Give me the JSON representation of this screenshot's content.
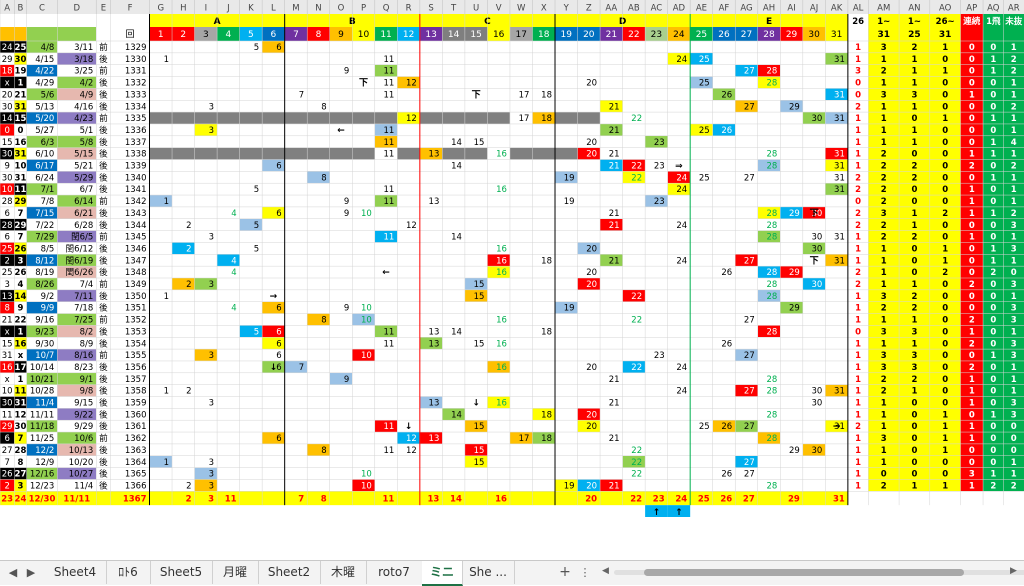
{
  "sheet": {
    "columns": [
      "A",
      "B",
      "C",
      "D",
      "E",
      "F",
      "G",
      "H",
      "I",
      "J",
      "K",
      "L",
      "M",
      "N",
      "O",
      "P",
      "Q",
      "R",
      "S",
      "T",
      "U",
      "V",
      "W",
      "X",
      "Y",
      "Z",
      "AA",
      "AB",
      "AC",
      "AD",
      "AE",
      "AF",
      "AG",
      "AH",
      "AI",
      "AJ",
      "AK",
      "AL",
      "AM",
      "AN",
      "AO",
      "AP",
      "AQ",
      "AR"
    ],
    "group_labels": {
      "A": "A",
      "B": "B",
      "C": "C",
      "D": "D",
      "E": "E"
    },
    "header_row1": {
      "f": "回",
      "nums": [
        "1",
        "2",
        "3",
        "4",
        "5",
        "6",
        "7",
        "8",
        "9",
        "10",
        "11",
        "12",
        "13",
        "14",
        "15",
        "16",
        "17",
        "18",
        "19",
        "20",
        "21",
        "22",
        "23",
        "24",
        "25",
        "26",
        "27",
        "28",
        "29",
        "30",
        "31"
      ],
      "al": "26",
      "am": "1~",
      "an": "1~",
      "ao": "26~",
      "ap": "連続",
      "aq": "1飛",
      "ar": "未抜"
    },
    "header_row2": {
      "am": "31",
      "an": "25",
      "ao": "31"
    },
    "rows": [
      {
        "a": "24",
        "b": "25",
        "c": "4/8",
        "d": "3/11",
        "e": "前",
        "f": "1329",
        "cells": {
          "5": "5",
          "6": "6"
        },
        "al": "1",
        "am": "3",
        "an": "2",
        "ao": "1",
        "ap": "0",
        "aq": "0",
        "ar": "1"
      },
      {
        "a": "29",
        "b": "30",
        "c": "4/15",
        "d": "3/18",
        "e": "後",
        "f": "1330",
        "cells": {
          "1": "1",
          "11": "11",
          "24": "24",
          "25": "25",
          "31": "31"
        },
        "al": "1",
        "am": "1",
        "an": "1",
        "ao": "0",
        "ap": "0",
        "aq": "1",
        "ar": "2"
      },
      {
        "a": "18",
        "b": "19",
        "c": "4/22",
        "d": "3/25",
        "e": "前",
        "f": "1331",
        "cells": {
          "9": "9",
          "11": "11",
          "27": "27",
          "28": "28"
        },
        "al": "3",
        "am": "2",
        "an": "1",
        "ao": "1",
        "ap": "0",
        "aq": "1",
        "ar": "2"
      },
      {
        "a": "x",
        "b": "1",
        "c": "4/29",
        "d": "4/2",
        "e": "後",
        "f": "1332",
        "cells": {
          "11": "11",
          "12": "12",
          "20": "20",
          "25": "25",
          "28": "28"
        },
        "al": "0",
        "am": "1",
        "an": "1",
        "ao": "0",
        "ap": "0",
        "aq": "0",
        "ar": "1"
      },
      {
        "a": "20",
        "b": "21",
        "c": "5/6",
        "d": "4/9",
        "e": "後",
        "f": "1333",
        "cells": {
          "7": "7",
          "11": "11",
          "17": "17",
          "18": "18",
          "26": "26",
          "31": "31"
        },
        "al": "0",
        "am": "3",
        "an": "3",
        "ao": "0",
        "ap": "1",
        "aq": "0",
        "ar": "1"
      },
      {
        "a": "30",
        "b": "31",
        "c": "5/13",
        "d": "4/16",
        "e": "後",
        "f": "1334",
        "cells": {
          "3": "3",
          "8": "8",
          "21": "21",
          "27": "27",
          "29": "29"
        },
        "al": "2",
        "am": "1",
        "an": "1",
        "ao": "0",
        "ap": "0",
        "aq": "0",
        "ar": "2"
      },
      {
        "a": "14",
        "b": "15",
        "c": "5/20",
        "d": "4/23",
        "e": "前",
        "f": "1335",
        "cells": {
          "12": "12",
          "17": "17",
          "18": "18",
          "22": "22",
          "30": "30",
          "31": "31"
        },
        "al": "1",
        "am": "1",
        "an": "0",
        "ao": "1",
        "ap": "0",
        "aq": "1",
        "ar": "1"
      },
      {
        "a": "0",
        "b": "0",
        "c": "5/27",
        "d": "5/1",
        "e": "後",
        "f": "1336",
        "cells": {
          "3": "3",
          "11": "11",
          "21": "21",
          "25": "25",
          "26": "26"
        },
        "al": "1",
        "am": "1",
        "an": "1",
        "ao": "0",
        "ap": "0",
        "aq": "0",
        "ar": "1"
      },
      {
        "a": "15",
        "b": "16",
        "c": "6/3",
        "d": "5/8",
        "e": "後",
        "f": "1337",
        "cells": {
          "11": "11",
          "14": "14",
          "15": "15",
          "20": "20",
          "23": "23"
        },
        "al": "1",
        "am": "1",
        "an": "1",
        "ao": "0",
        "ap": "0",
        "aq": "1",
        "ar": "4"
      },
      {
        "a": "30",
        "b": "31",
        "c": "6/10",
        "d": "5/15",
        "e": "後",
        "f": "1338",
        "cells": {
          "11": "11",
          "13": "13",
          "16": "16",
          "20": "20",
          "21": "21",
          "28": "28",
          "31": "31"
        },
        "al": "1",
        "am": "2",
        "an": "0",
        "ao": "0",
        "ap": "1",
        "aq": "1",
        "ar": "1"
      },
      {
        "a": "9",
        "b": "10",
        "c": "6/17",
        "d": "5/21",
        "e": "後",
        "f": "1339",
        "cells": {
          "6": "6",
          "14": "14",
          "21": "21",
          "22": "22",
          "23": "23",
          "28": "28",
          "31": "31"
        },
        "al": "1",
        "am": "2",
        "an": "2",
        "ao": "0",
        "ap": "2",
        "aq": "0",
        "ar": "2"
      },
      {
        "a": "30",
        "b": "31",
        "c": "6/24",
        "d": "5/29",
        "e": "後",
        "f": "1340",
        "cells": {
          "8": "8",
          "19": "19",
          "22": "22",
          "24": "24",
          "25": "25",
          "27": "27",
          "31": "31"
        },
        "al": "2",
        "am": "2",
        "an": "2",
        "ao": "0",
        "ap": "0",
        "aq": "1",
        "ar": "1"
      },
      {
        "a": "10",
        "b": "11",
        "c": "7/1",
        "d": "6/7",
        "e": "後",
        "f": "1341",
        "cells": {
          "5": "5",
          "11": "11",
          "16": "16",
          "24": "24",
          "31": "31"
        },
        "al": "2",
        "am": "2",
        "an": "0",
        "ao": "0",
        "ap": "1",
        "aq": "0",
        "ar": "1"
      },
      {
        "a": "28",
        "b": "29",
        "c": "7/8",
        "d": "6/14",
        "e": "前",
        "f": "1342",
        "cells": {
          "1": "1",
          "9": "9",
          "11": "11",
          "13": "13",
          "19": "19",
          "23": "23"
        },
        "al": "0",
        "am": "2",
        "an": "0",
        "ao": "0",
        "ap": "1",
        "aq": "0",
        "ar": "1"
      },
      {
        "a": "6",
        "b": "7",
        "c": "7/15",
        "d": "6/21",
        "e": "後",
        "f": "1343",
        "cells": {
          "4": "4",
          "6": "6",
          "9": "9",
          "10": "10",
          "21": "21",
          "28": "28",
          "29": "29",
          "30": "30"
        },
        "al": "2",
        "am": "3",
        "an": "1",
        "ao": "2",
        "ap": "1",
        "aq": "1",
        "ar": "2"
      },
      {
        "a": "28",
        "b": "29",
        "c": "7/22",
        "d": "6/28",
        "e": "後",
        "f": "1344",
        "cells": {
          "2": "2",
          "5": "5",
          "12": "12",
          "21": "21",
          "24": "24",
          "28": "28"
        },
        "al": "2",
        "am": "2",
        "an": "1",
        "ao": "0",
        "ap": "0",
        "aq": "0",
        "ar": "3"
      },
      {
        "a": "6",
        "b": "7",
        "c": "7/29",
        "d": "閏6/5",
        "e": "前",
        "f": "1345",
        "cells": {
          "3": "3",
          "11": "11",
          "14": "14",
          "28": "28",
          "30": "30",
          "31": "31"
        },
        "al": "1",
        "am": "2",
        "an": "2",
        "ao": "0",
        "ap": "1",
        "aq": "0",
        "ar": "1"
      },
      {
        "a": "25",
        "b": "26",
        "c": "8/5",
        "d": "閏6/12",
        "e": "後",
        "f": "1346",
        "cells": {
          "2": "2",
          "5": "5",
          "16": "16",
          "20": "20",
          "30": "30"
        },
        "al": "1",
        "am": "1",
        "an": "0",
        "ao": "1",
        "ap": "0",
        "aq": "1",
        "ar": "3"
      },
      {
        "a": "2",
        "b": "3",
        "c": "8/12",
        "d": "閏6/19",
        "e": "後",
        "f": "1347",
        "cells": {
          "4": "4",
          "16": "16",
          "18": "18",
          "21": "21",
          "24": "24",
          "27": "27",
          "31": "31"
        },
        "al": "1",
        "am": "1",
        "an": "0",
        "ao": "1",
        "ap": "0",
        "aq": "1",
        "ar": "1"
      },
      {
        "a": "25",
        "b": "26",
        "c": "8/19",
        "d": "閏6/26",
        "e": "後",
        "f": "1348",
        "cells": {
          "4": "4",
          "16": "16",
          "20": "20",
          "26": "26",
          "28": "28",
          "29": "29"
        },
        "al": "2",
        "am": "1",
        "an": "0",
        "ao": "2",
        "ap": "0",
        "aq": "2",
        "ar": "0"
      },
      {
        "a": "3",
        "b": "4",
        "c": "8/26",
        "d": "7/4",
        "e": "前",
        "f": "1349",
        "cells": {
          "2": "2",
          "3": "3",
          "15": "15",
          "20": "20",
          "28": "28",
          "30": "30"
        },
        "al": "2",
        "am": "1",
        "an": "1",
        "ao": "0",
        "ap": "2",
        "aq": "0",
        "ar": "3"
      },
      {
        "a": "13",
        "b": "14",
        "c": "9/2",
        "d": "7/11",
        "e": "後",
        "f": "1350",
        "cells": {
          "1": "1",
          "15": "15",
          "22": "22",
          "28": "28"
        },
        "al": "1",
        "am": "3",
        "an": "2",
        "ao": "0",
        "ap": "0",
        "aq": "0",
        "ar": "1"
      },
      {
        "a": "8",
        "b": "9",
        "c": "9/9",
        "d": "7/18",
        "e": "後",
        "f": "1351",
        "cells": {
          "4": "4",
          "6": "6",
          "9": "9",
          "10": "10",
          "19": "19",
          "29": "29"
        },
        "al": "1",
        "am": "2",
        "an": "2",
        "ao": "0",
        "ap": "0",
        "aq": "0",
        "ar": "3"
      },
      {
        "a": "21",
        "b": "22",
        "c": "9/16",
        "d": "7/25",
        "e": "前",
        "f": "1352",
        "cells": {
          "8": "8",
          "10": "10",
          "16": "16",
          "22": "22",
          "27": "27"
        },
        "al": "1",
        "am": "1",
        "an": "1",
        "ao": "0",
        "ap": "2",
        "aq": "0",
        "ar": "3"
      },
      {
        "a": "x",
        "b": "1",
        "c": "9/23",
        "d": "8/2",
        "e": "後",
        "f": "1353",
        "cells": {
          "5": "5",
          "6": "6",
          "11": "11",
          "13": "13",
          "14": "14",
          "18": "18",
          "28": "28"
        },
        "al": "0",
        "am": "3",
        "an": "3",
        "ao": "0",
        "ap": "1",
        "aq": "0",
        "ar": "1"
      },
      {
        "a": "15",
        "b": "16",
        "c": "9/30",
        "d": "8/9",
        "e": "後",
        "f": "1354",
        "cells": {
          "6": "6",
          "11": "11",
          "13": "13",
          "15": "15",
          "16": "16",
          "26": "26"
        },
        "al": "1",
        "am": "1",
        "an": "1",
        "ao": "0",
        "ap": "2",
        "aq": "0",
        "ar": "3"
      },
      {
        "a": "31",
        "b": "x",
        "c": "10/7",
        "d": "8/16",
        "e": "前",
        "f": "1355",
        "cells": {
          "3": "3",
          "6": "6",
          "10": "10",
          "23": "23",
          "27": "27"
        },
        "al": "1",
        "am": "3",
        "an": "3",
        "ao": "0",
        "ap": "0",
        "aq": "1",
        "ar": "3"
      },
      {
        "a": "16",
        "b": "17",
        "c": "10/14",
        "d": "8/23",
        "e": "後",
        "f": "1356",
        "cells": {
          "6": "6",
          "7": "7",
          "16": "16",
          "20": "20",
          "22": "22",
          "24": "24"
        },
        "al": "1",
        "am": "3",
        "an": "3",
        "ao": "0",
        "ap": "2",
        "aq": "0",
        "ar": "1"
      },
      {
        "a": "x",
        "b": "1",
        "c": "10/21",
        "d": "9/1",
        "e": "後",
        "f": "1357",
        "cells": {
          "9": "9",
          "21": "21",
          "28": "28"
        },
        "al": "1",
        "am": "2",
        "an": "2",
        "ao": "0",
        "ap": "1",
        "aq": "0",
        "ar": "1"
      },
      {
        "a": "10",
        "b": "11",
        "c": "10/28",
        "d": "9/8",
        "e": "後",
        "f": "1358",
        "cells": {
          "1": "1",
          "2": "2",
          "24": "24",
          "27": "27",
          "28": "28",
          "30": "30",
          "31": "31"
        },
        "al": "1",
        "am": "2",
        "an": "1",
        "ao": "0",
        "ap": "1",
        "aq": "0",
        "ar": "1"
      },
      {
        "a": "30",
        "b": "31",
        "c": "11/4",
        "d": "9/15",
        "e": "後",
        "f": "1359",
        "cells": {
          "3": "3",
          "13": "13",
          "16": "16",
          "21": "21",
          "30": "30"
        },
        "al": "1",
        "am": "1",
        "an": "0",
        "ao": "0",
        "ap": "1",
        "aq": "0",
        "ar": "3"
      },
      {
        "a": "11",
        "b": "12",
        "c": "11/11",
        "d": "9/22",
        "e": "後",
        "f": "1360",
        "cells": {
          "14": "14",
          "18": "18",
          "20": "20",
          "28": "28"
        },
        "al": "1",
        "am": "1",
        "an": "0",
        "ao": "1",
        "ap": "0",
        "aq": "1",
        "ar": "3"
      },
      {
        "a": "29",
        "b": "30",
        "c": "11/18",
        "d": "9/29",
        "e": "後",
        "f": "1361",
        "cells": {
          "11": "11",
          "15": "15",
          "20": "20",
          "25": "25",
          "26": "26",
          "27": "27",
          "31": "31"
        },
        "al": "2",
        "am": "1",
        "an": "0",
        "ao": "1",
        "ap": "1",
        "aq": "0",
        "ar": "0"
      },
      {
        "a": "6",
        "b": "7",
        "c": "11/25",
        "d": "10/6",
        "e": "前",
        "f": "1362",
        "cells": {
          "6": "6",
          "12": "12",
          "13": "13",
          "17": "17",
          "18": "18",
          "21": "21",
          "28": "28"
        },
        "al": "1",
        "am": "3",
        "an": "0",
        "ao": "1",
        "ap": "1",
        "aq": "0",
        "ar": "0"
      },
      {
        "a": "27",
        "b": "28",
        "c": "12/2",
        "d": "10/13",
        "e": "後",
        "f": "1363",
        "cells": {
          "8": "8",
          "11": "11",
          "12": "12",
          "15": "15",
          "22": "22",
          "29": "29",
          "30": "30"
        },
        "al": "1",
        "am": "1",
        "an": "0",
        "ao": "1",
        "ap": "0",
        "aq": "0",
        "ar": "0"
      },
      {
        "a": "7",
        "b": "8",
        "c": "12/9",
        "d": "10/20",
        "e": "後",
        "f": "1364",
        "cells": {
          "1": "1",
          "3": "3",
          "15": "15",
          "22": "22",
          "27": "27"
        },
        "al": "1",
        "am": "1",
        "an": "0",
        "ao": "0",
        "ap": "0",
        "aq": "0",
        "ar": "1"
      },
      {
        "a": "26",
        "b": "27",
        "c": "12/16",
        "d": "10/27",
        "e": "後",
        "f": "1365",
        "cells": {
          "3": "3",
          "10": "10",
          "22": "22",
          "26": "26",
          "27": "27"
        },
        "al": "1",
        "am": "0",
        "an": "0",
        "ao": "0",
        "ap": "3",
        "aq": "1",
        "ar": "1"
      },
      {
        "a": "2",
        "b": "3",
        "c": "12/23",
        "d": "11/4",
        "e": "後",
        "f": "1366",
        "cells": {
          "2": "2",
          "3": "3",
          "10": "10",
          "19": "19",
          "20": "20",
          "21": "21",
          "28": "28"
        },
        "al": "1",
        "am": "2",
        "an": "1",
        "ao": "1",
        "ap": "1",
        "aq": "2",
        "ar": "2"
      }
    ],
    "footer": {
      "a": "23",
      "b": "24",
      "c": "12/30",
      "d": "11/11",
      "f": "1367",
      "cells": {
        "2": "2",
        "3": "3",
        "4": "11",
        "7": "7",
        "8": "8",
        "11": "11",
        "13": "13",
        "14": "14",
        "16": "16",
        "20": "20",
        "22": "22",
        "23": "23",
        "24": "24",
        "25": "25",
        "26": "26",
        "27": "27",
        "29": "29",
        "31": "31"
      }
    },
    "arrows": {
      "left": "←",
      "right": "→",
      "down": "↓",
      "up": "↑",
      "pipe": "⇒",
      "lower": "下"
    }
  },
  "tabs": [
    {
      "label": "Sheet4",
      "active": false
    },
    {
      "label": "ﾛﾄ6",
      "active": false
    },
    {
      "label": "Sheet5",
      "active": false
    },
    {
      "label": "月曜",
      "active": false
    },
    {
      "label": "Sheet2",
      "active": false
    },
    {
      "label": "木曜",
      "active": false
    },
    {
      "label": "roto7",
      "active": false
    },
    {
      "label": "ミニ",
      "active": true
    },
    {
      "label": "She ...",
      "active": false
    }
  ],
  "tabbar": {
    "add": "+",
    "more": "⋮"
  },
  "colors": {
    "grid": "#d4d4d4",
    "header": "#e9e9e9",
    "yellow": "#ffff00",
    "orange": "#ffc000",
    "red": "#ff0000",
    "blue": "#00b0f0",
    "green": "#92d050",
    "gray": "#808080",
    "lightgray": "#d9d9d9",
    "black": "#000000",
    "purple": "#7030a0",
    "darkblue": "#0070c0",
    "teal": "#00b050",
    "pink": "#ff99cc",
    "navy": "#1f3864"
  }
}
